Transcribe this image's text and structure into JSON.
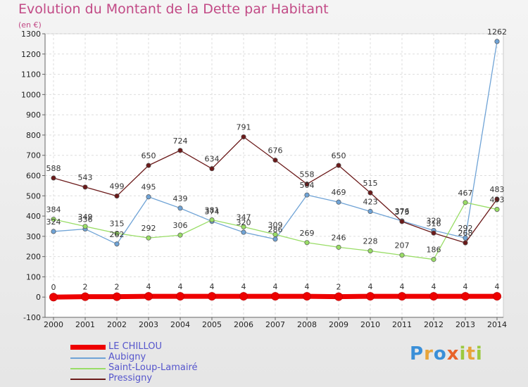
{
  "title": "Evolution du Montant de la Dette par Habitant",
  "subtitle": "(en €)",
  "logo": [
    "P",
    "r",
    "o",
    "x",
    "i",
    "t",
    "i"
  ],
  "logo_colors": [
    "#3a8fd8",
    "#e8a43a",
    "#3a8fd8",
    "#e8632a",
    "#9cc93f",
    "#e8a43a",
    "#9cc93f"
  ],
  "chart_data": {
    "type": "line",
    "title": "Evolution du Montant de la Dette par Habitant",
    "ylabel": "(en €)",
    "xlabel": "",
    "x": [
      "2000",
      "2001",
      "2002",
      "2003",
      "2004",
      "2005",
      "2006",
      "2007",
      "2008",
      "2009",
      "2010",
      "2011",
      "2012",
      "2013",
      "2014"
    ],
    "ylim": [
      -100,
      1300
    ],
    "yticks": [
      "-100",
      "0",
      "100",
      "200",
      "300",
      "400",
      "500",
      "600",
      "700",
      "800",
      "900",
      "1000",
      "1100",
      "1200",
      "1300"
    ],
    "grid": true,
    "legend_position": "bottom-left",
    "series": [
      {
        "name": "LE CHILLOU",
        "color": "#ee0000",
        "values": [
          0,
          2,
          2,
          4,
          4,
          4,
          4,
          4,
          4,
          2,
          4,
          4,
          4,
          4,
          4
        ]
      },
      {
        "name": "Aubigny",
        "color": "#6fa3d6",
        "values": [
          324,
          336,
          262,
          495,
          439,
          374,
          320,
          286,
          504,
          469,
          423,
          376,
          329,
          292,
          1262
        ]
      },
      {
        "name": "Saint-Loup-Lamairé",
        "color": "#99dd66",
        "values": [
          384,
          349,
          315,
          292,
          306,
          381,
          347,
          309,
          269,
          246,
          228,
          207,
          186,
          467,
          433
        ]
      },
      {
        "name": "Pressigny",
        "color": "#6b1a1a",
        "values": [
          588,
          543,
          499,
          650,
          724,
          634,
          791,
          676,
          558,
          650,
          515,
          373,
          316,
          268,
          483
        ]
      }
    ]
  }
}
